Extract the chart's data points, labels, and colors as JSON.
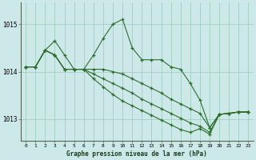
{
  "bg_color": "#cce8e8",
  "grid_color": "#99ccbb",
  "line_color": "#2d6e2d",
  "xlabel": "Graphe pression niveau de la mer (hPa)",
  "xlim": [
    -0.5,
    23.5
  ],
  "ylim": [
    1012.55,
    1015.45
  ],
  "yticks": [
    1013,
    1014,
    1015
  ],
  "ytick_labels": [
    "1013",
    "1014",
    "1015"
  ],
  "xticks": [
    0,
    1,
    2,
    3,
    4,
    5,
    6,
    7,
    8,
    9,
    10,
    11,
    12,
    13,
    14,
    15,
    16,
    17,
    18,
    19,
    20,
    21,
    22,
    23
  ],
  "s1": [
    1014.1,
    1014.1,
    1014.45,
    1014.65,
    1014.35,
    1014.05,
    1014.05,
    1014.35,
    1014.7,
    1015.0,
    1015.1,
    1014.5,
    1014.25,
    1014.25,
    1014.25,
    1014.1,
    1014.05,
    1013.75,
    1013.4,
    1012.82,
    1013.1,
    1013.12,
    1013.15,
    1013.15
  ],
  "s2": [
    1014.1,
    1014.1,
    1014.45,
    1014.35,
    1014.05,
    1014.05,
    1014.05,
    1014.05,
    1014.05,
    1014.0,
    1013.95,
    1013.85,
    1013.75,
    1013.65,
    1013.55,
    1013.42,
    1013.32,
    1013.22,
    1013.12,
    1012.82,
    1013.1,
    1013.12,
    1013.15,
    1013.15
  ],
  "s3": [
    1014.1,
    1014.1,
    1014.45,
    1014.35,
    1014.05,
    1014.05,
    1014.05,
    1013.95,
    1013.85,
    1013.75,
    1013.65,
    1013.55,
    1013.42,
    1013.32,
    1013.22,
    1013.12,
    1013.02,
    1012.92,
    1012.85,
    1012.72,
    1013.1,
    1013.12,
    1013.15,
    1013.15
  ],
  "s4": [
    1014.1,
    1014.1,
    1014.45,
    1014.35,
    1014.05,
    1014.05,
    1014.05,
    1013.85,
    1013.68,
    1013.52,
    1013.38,
    1013.28,
    1013.18,
    1013.08,
    1012.98,
    1012.88,
    1012.78,
    1012.72,
    1012.8,
    1012.68,
    1013.1,
    1013.12,
    1013.15,
    1013.15
  ]
}
